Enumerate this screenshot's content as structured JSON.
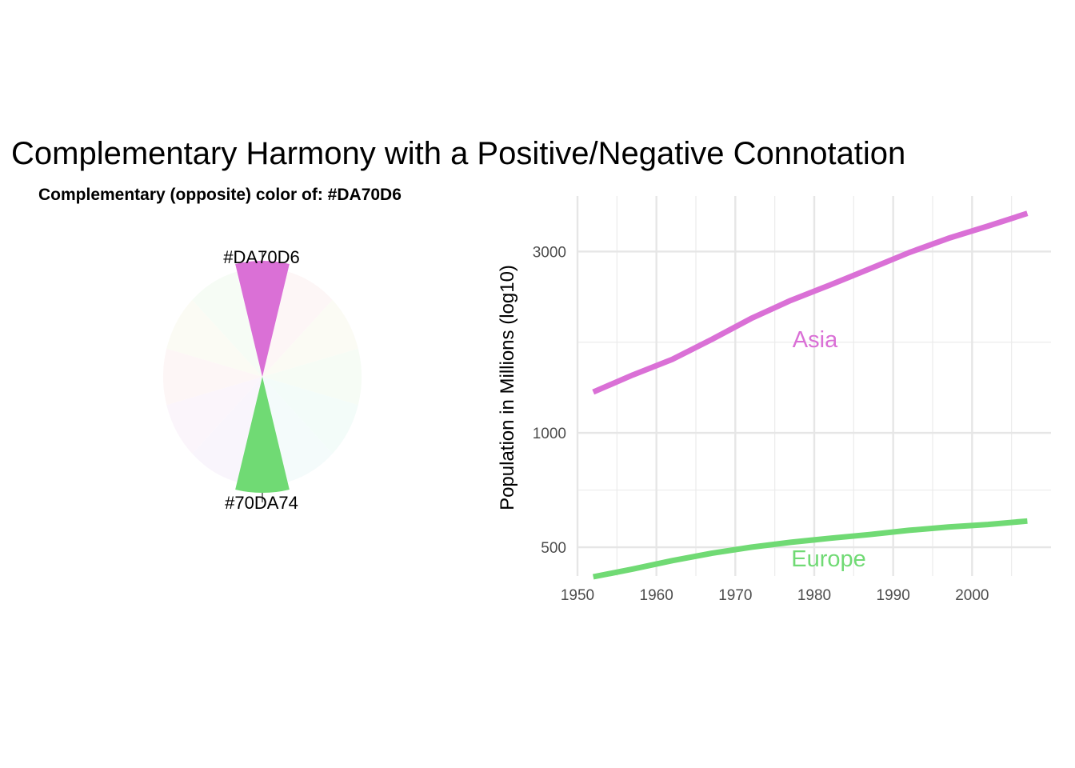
{
  "title": "Complementary Harmony with a Positive/Negative Connotation",
  "wheel": {
    "subtitle": "Complementary (opposite) color of:  #DA70D6",
    "base_color": "#DA70D6",
    "complement_color": "#70DA74",
    "base_label": "#DA70D6",
    "complement_label": "#70DA74"
  },
  "chart_data": {
    "type": "line",
    "x_ticks": [
      "1950",
      "1960",
      "1970",
      "1980",
      "1990",
      "2000"
    ],
    "y_ticks": [
      "500",
      "1000",
      "3000"
    ],
    "ylabel": "Population in Millions (log10)",
    "xlim": [
      1950,
      2010
    ],
    "ylim": [
      420,
      4200
    ],
    "y_scale": "log10",
    "grid": true,
    "series": [
      {
        "name": "Asia",
        "color": "#DA70D6",
        "x": [
          1952,
          1957,
          1962,
          1967,
          1972,
          1977,
          1982,
          1987,
          1992,
          1997,
          2002,
          2007
        ],
        "y": [
          1280,
          1420,
          1560,
          1760,
          2000,
          2230,
          2450,
          2700,
          2980,
          3250,
          3500,
          3780
        ]
      },
      {
        "name": "Europe",
        "color": "#70DA74",
        "x": [
          1952,
          1957,
          1962,
          1967,
          1972,
          1977,
          1982,
          1987,
          1992,
          1997,
          2002,
          2007
        ],
        "y": [
          418,
          438,
          461,
          482,
          500,
          515,
          528,
          540,
          554,
          565,
          574,
          586
        ]
      }
    ]
  }
}
